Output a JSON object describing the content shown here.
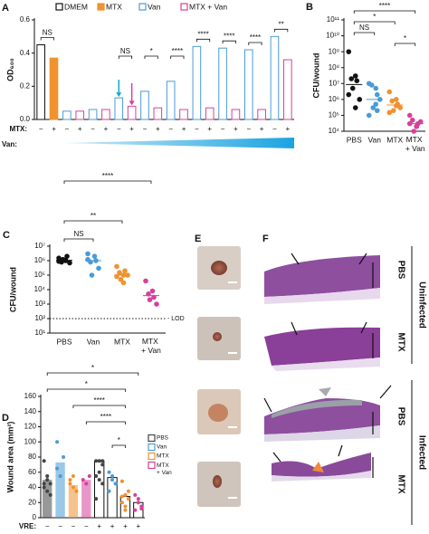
{
  "chart_data": [
    {
      "type": "bar",
      "panel": "A",
      "ylabel": "OD₆₀₀",
      "categories": [
        "−",
        "+",
        "−",
        "+",
        "−",
        "+",
        "−",
        "+",
        "−",
        "+",
        "−",
        "+",
        "−",
        "+",
        "−",
        "+",
        "−",
        "+",
        "−",
        "+"
      ],
      "row_labels": [
        "MTX:",
        "Van:"
      ],
      "series": [
        {
          "name": "DMEM",
          "color": "#111111",
          "filled": false,
          "values": [
            0.45,
            null,
            null,
            null,
            null,
            null,
            null,
            null,
            null,
            null,
            null,
            null,
            null,
            null,
            null,
            null,
            null,
            null,
            null,
            null
          ]
        },
        {
          "name": "MTX",
          "color": "#f0922f",
          "filled": true,
          "values": [
            null,
            0.37,
            null,
            null,
            null,
            null,
            null,
            null,
            null,
            null,
            null,
            null,
            null,
            null,
            null,
            null,
            null,
            null,
            null,
            null
          ]
        },
        {
          "name": "Van",
          "color": "#4a9bd6",
          "filled": false,
          "values": [
            null,
            null,
            0.05,
            null,
            0.06,
            null,
            0.13,
            null,
            0.17,
            null,
            0.23,
            null,
            0.44,
            null,
            0.43,
            null,
            0.42,
            null,
            0.5,
            null
          ]
        },
        {
          "name": "MTX + Van",
          "color": "#d6409a",
          "filled": false,
          "values": [
            null,
            null,
            null,
            0.05,
            null,
            0.06,
            null,
            0.08,
            null,
            0.07,
            null,
            0.06,
            null,
            0.07,
            null,
            0.06,
            null,
            0.06,
            null,
            0.36
          ]
        }
      ],
      "ylim": [
        0,
        0.6
      ],
      "yticks": [
        {
          "value": 0,
          "label": "0.0"
        },
        0.2,
        0.4,
        0.6
      ],
      "annotations": [
        "NS",
        "NS",
        "*",
        "****",
        "****",
        "****",
        "****",
        "**"
      ]
    },
    {
      "type": "strip",
      "panel": "B",
      "ylabel": "CFU/wound",
      "log": true,
      "categories": [
        "PBS",
        "Van",
        "MTX",
        "MTX + Van"
      ],
      "colors": [
        "#111111",
        "#4a9bd6",
        "#f0922f",
        "#d6409a"
      ],
      "values": [
        [
          1000000000,
          30000000,
          15000000,
          20000000,
          5000000,
          1000000,
          2000000,
          300000
        ],
        [
          10000000,
          5000000,
          2000000,
          8000000,
          300000,
          1000000,
          100000,
          500000,
          200000
        ],
        [
          3000000,
          1000000,
          500000,
          800000,
          200000,
          300000,
          150000,
          400000
        ],
        [
          100000,
          20000,
          30000,
          50000,
          10000,
          40000,
          30000,
          20000
        ]
      ],
      "ylim": [
        10000,
        100000000000
      ],
      "yticks": [
        {
          "value": 10000,
          "label": "10⁴"
        },
        {
          "value": 100000,
          "label": "10⁵"
        },
        {
          "value": 1000000,
          "label": "10⁶"
        },
        {
          "value": 10000000,
          "label": "10⁷"
        },
        {
          "value": 100000000,
          "label": "10⁸"
        },
        {
          "value": 1000000000,
          "label": "10⁹"
        },
        {
          "value": 10000000000,
          "label": "10¹⁰"
        },
        {
          "value": 100000000000,
          "label": "10¹¹"
        }
      ],
      "annotations": [
        "****",
        "*",
        "NS",
        "*"
      ]
    },
    {
      "type": "strip",
      "panel": "C",
      "ylabel": "CFU/wound",
      "log": true,
      "categories": [
        "PBS",
        "Van",
        "MTX",
        "MTX + Van"
      ],
      "colors": [
        "#111111",
        "#4a9bd6",
        "#f0922f",
        "#d6409a"
      ],
      "values": [
        [
          1500000,
          1000000,
          2000000,
          800000,
          1200000,
          700000,
          900000,
          1100000
        ],
        [
          3000000,
          2000000,
          1000000,
          800000,
          100000,
          300000,
          1200000
        ],
        [
          400000,
          100000,
          200000,
          150000,
          50000,
          100000,
          80000,
          30000
        ],
        [
          40000,
          8000,
          3000,
          5000,
          2000,
          1000
        ]
      ],
      "ylim": [
        10,
        10000000
      ],
      "yticks": [
        {
          "value": 10,
          "label": "10¹"
        },
        {
          "value": 100,
          "label": "10²"
        },
        {
          "value": 1000,
          "label": "10³"
        },
        {
          "value": 10000,
          "label": "10⁴"
        },
        {
          "value": 100000,
          "label": "10⁵"
        },
        {
          "value": 1000000,
          "label": "10⁶"
        },
        {
          "value": 10000000,
          "label": "10⁷"
        }
      ],
      "lod": 100,
      "lod_label": "- LOD",
      "annotations": [
        "****",
        "**",
        "NS"
      ]
    },
    {
      "type": "bar_points",
      "panel": "D",
      "ylabel": "Wound area (mm²)",
      "categories": [
        "−",
        "−",
        "−",
        "−",
        "+",
        "+",
        "+",
        "+"
      ],
      "row_label": "VRE:",
      "filled": [
        true,
        true,
        true,
        true,
        false,
        false,
        false,
        false
      ],
      "series": [
        {
          "name": "PBS",
          "color": "#444444",
          "values": [
            50,
            null,
            null,
            null,
            75,
            null,
            null,
            null
          ],
          "points": [
            [
              75,
              50,
              45,
              40,
              35,
              30,
              45,
              55
            ],
            null,
            null,
            null,
            [
              75,
              75,
              70,
              55,
              50,
              45,
              25,
              60,
              75
            ],
            null,
            null,
            null
          ]
        },
        {
          "name": "Van",
          "color": "#4a9bd6",
          "values": [
            null,
            73,
            null,
            null,
            null,
            53,
            null,
            null
          ],
          "points": [
            null,
            [
              100,
              55,
              80,
              65
            ],
            null,
            null,
            null,
            [
              60,
              50,
              45,
              35,
              55
            ],
            null,
            null
          ]
        },
        {
          "name": "MTX",
          "color": "#f0922f",
          "values": [
            null,
            null,
            43,
            null,
            null,
            null,
            28,
            null
          ],
          "points": [
            null,
            null,
            [
              50,
              40,
              35,
              45,
              55
            ],
            null,
            null,
            null,
            [
              48,
              30,
              25,
              20,
              10,
              35,
              28,
              15
            ],
            null
          ]
        },
        {
          "name": "MTX + Van",
          "color": "#d6409a",
          "values": [
            null,
            null,
            null,
            50,
            null,
            null,
            null,
            20
          ],
          "points": [
            null,
            null,
            null,
            [
              50,
              45,
              55
            ],
            null,
            null,
            null,
            [
              30,
              20,
              15,
              10,
              25,
              12
            ]
          ]
        }
      ],
      "ylim": [
        0,
        160
      ],
      "yticks": [
        0,
        20,
        40,
        60,
        80,
        100,
        120,
        140,
        160
      ],
      "annotations": [
        "*",
        "*",
        "****",
        "****",
        "*"
      ]
    }
  ],
  "images": {
    "panel_e": "E",
    "panel_f": "F",
    "rows": [
      "PBS",
      "MTX",
      "PBS",
      "MTX"
    ],
    "groups": [
      "Uninfected",
      "Infected"
    ]
  }
}
